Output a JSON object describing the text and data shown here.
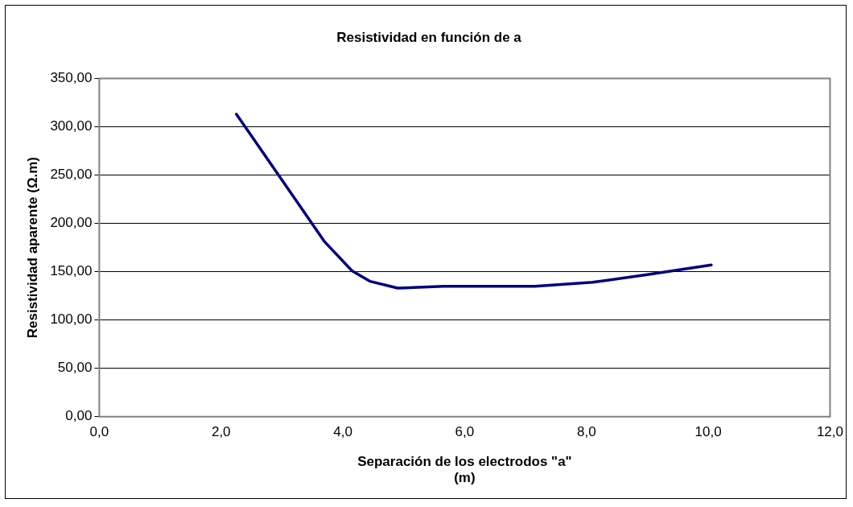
{
  "chart_data": {
    "type": "line",
    "title": "Resistividad en función de a",
    "xlabel": "Separación de los electrodos \"a\"\n(m)",
    "ylabel": "Resistividad aparente (Ω.m)",
    "x": [
      2.25,
      2.45,
      3.7,
      4.15,
      4.45,
      4.9,
      5.65,
      7.15,
      8.1,
      9.0,
      10.05
    ],
    "series": [
      {
        "color": "#000080",
        "values": [
          313,
          295,
          181,
          151,
          140,
          133,
          135,
          135,
          139,
          147,
          157
        ]
      }
    ],
    "xlim": [
      0,
      12
    ],
    "xticks": [
      {
        "value": 0,
        "label": "0,0"
      },
      {
        "value": 2,
        "label": "2,0"
      },
      {
        "value": 4,
        "label": "4,0"
      },
      {
        "value": 6,
        "label": "6,0"
      },
      {
        "value": 8,
        "label": "8,0"
      },
      {
        "value": 10,
        "label": "10,0"
      },
      {
        "value": 12,
        "label": "12,0"
      }
    ],
    "ylim": [
      0,
      350
    ],
    "yticks": [
      {
        "value": 0,
        "label": "0,00"
      },
      {
        "value": 50,
        "label": "50,00"
      },
      {
        "value": 100,
        "label": "100,00"
      },
      {
        "value": 150,
        "label": "150,00"
      },
      {
        "value": 200,
        "label": "200,00"
      },
      {
        "value": 250,
        "label": "250,00"
      },
      {
        "value": 300,
        "label": "300,00"
      },
      {
        "value": 350,
        "label": "350,00"
      }
    ],
    "grid": "y",
    "legend": false,
    "marker": "none",
    "line_style": "solid"
  }
}
